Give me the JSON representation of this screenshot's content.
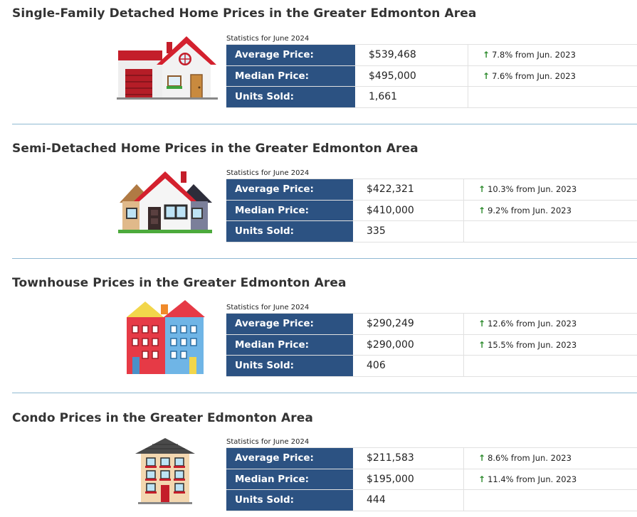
{
  "sections": [
    {
      "title": "Single-Family Detached Home Prices in the Greater Edmonton Area",
      "caption": "Statistics for June 2024",
      "icon": "single-family-house-icon",
      "rows": [
        {
          "label": "Average Price:",
          "value": "$539,468",
          "change": "7.8% from Jun. 2023",
          "direction": "up"
        },
        {
          "label": "Median Price:",
          "value": "$495,000",
          "change": "7.6% from Jun. 2023",
          "direction": "up"
        },
        {
          "label": "Units Sold:",
          "value": "1,661",
          "change": "",
          "direction": ""
        }
      ]
    },
    {
      "title": "Semi-Detached Home Prices in the Greater Edmonton Area",
      "caption": "Statistics for June 2024",
      "icon": "semi-detached-house-icon",
      "rows": [
        {
          "label": "Average Price:",
          "value": "$422,321",
          "change": "10.3% from Jun. 2023",
          "direction": "up"
        },
        {
          "label": "Median Price:",
          "value": "$410,000",
          "change": "9.2% from Jun. 2023",
          "direction": "up"
        },
        {
          "label": "Units Sold:",
          "value": "335",
          "change": "",
          "direction": ""
        }
      ]
    },
    {
      "title": "Townhouse Prices in the Greater Edmonton Area",
      "caption": "Statistics for June 2024",
      "icon": "townhouse-icon",
      "rows": [
        {
          "label": "Average Price:",
          "value": "$290,249",
          "change": "12.6% from Jun. 2023",
          "direction": "up"
        },
        {
          "label": "Median Price:",
          "value": "$290,000",
          "change": "15.5% from Jun. 2023",
          "direction": "up"
        },
        {
          "label": "Units Sold:",
          "value": "406",
          "change": "",
          "direction": ""
        }
      ]
    },
    {
      "title": "Condo Prices in the Greater Edmonton Area",
      "caption": "Statistics for June 2024",
      "icon": "condo-building-icon",
      "rows": [
        {
          "label": "Average Price:",
          "value": "$211,583",
          "change": "8.6% from Jun. 2023",
          "direction": "up"
        },
        {
          "label": "Median Price:",
          "value": "$195,000",
          "change": "11.4% from Jun. 2023",
          "direction": "up"
        },
        {
          "label": "Units Sold:",
          "value": "444",
          "change": "",
          "direction": ""
        }
      ]
    }
  ],
  "colors": {
    "label_bg": "#2c5282",
    "divider": "#8fb9d3",
    "up_arrow": "#2e8b2e"
  }
}
